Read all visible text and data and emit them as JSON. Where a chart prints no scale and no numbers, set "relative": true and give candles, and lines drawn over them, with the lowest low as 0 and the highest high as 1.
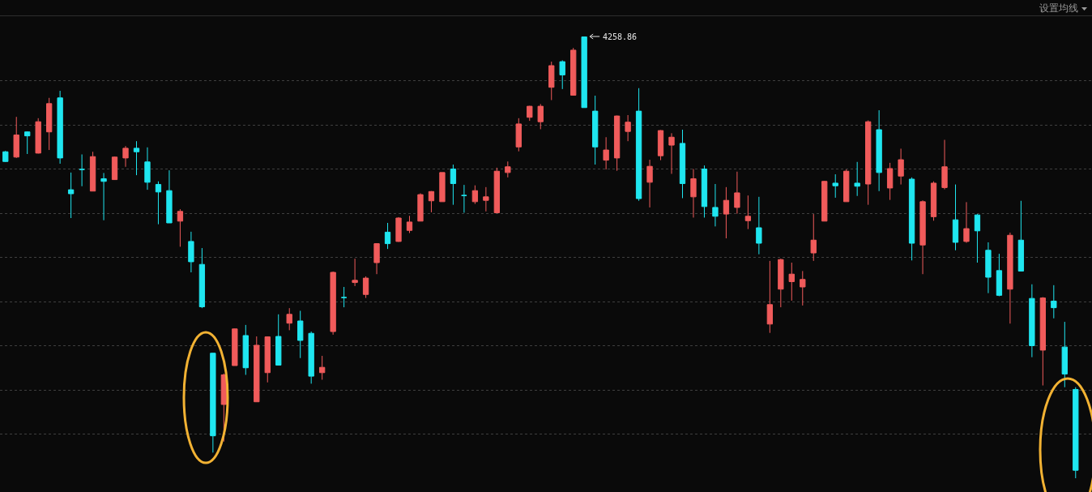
{
  "chart_data": {
    "type": "candlestick",
    "relative": true,
    "grid": "y",
    "annotations": [
      "设置均线",
      "4258.86"
    ],
    "categories": [
      null,
      null,
      null,
      null,
      null,
      null,
      null,
      null,
      null,
      null,
      null,
      null,
      null,
      null,
      null,
      null,
      null,
      null,
      null,
      null,
      null,
      null,
      null,
      null,
      null,
      null,
      null,
      null,
      null,
      null,
      null,
      null,
      null,
      null,
      null,
      null,
      null,
      null,
      null,
      null,
      null,
      null,
      null,
      null,
      null,
      null,
      null,
      null,
      null,
      null,
      null,
      null,
      null,
      null,
      null,
      null,
      null,
      null,
      null,
      null,
      null,
      null,
      null,
      null,
      null,
      null,
      null,
      null,
      null,
      null,
      null,
      null,
      null,
      null,
      null,
      null,
      null,
      null,
      null,
      null,
      null,
      null,
      null,
      null,
      null,
      null,
      null,
      null,
      null,
      null,
      null,
      null,
      null,
      null,
      null,
      null,
      null,
      null,
      null
    ],
    "ohlc": [
      [
        0.739,
        0.741,
        0.716,
        0.717
      ],
      [
        0.727,
        0.818,
        0.725,
        0.777
      ],
      [
        0.784,
        0.785,
        0.734,
        0.775
      ],
      [
        0.736,
        0.815,
        0.735,
        0.807
      ],
      [
        0.784,
        0.861,
        0.743,
        0.848
      ],
      [
        0.861,
        0.877,
        0.712,
        0.725
      ],
      [
        0.653,
        0.692,
        0.589,
        0.644
      ],
      [
        0.699,
        0.733,
        0.661,
        0.699
      ],
      [
        0.65,
        0.739,
        0.65,
        0.728
      ],
      [
        0.678,
        0.691,
        0.584,
        0.672
      ],
      [
        0.676,
        0.728,
        0.676,
        0.727
      ],
      [
        0.725,
        0.752,
        0.705,
        0.747
      ],
      [
        0.747,
        0.763,
        0.686,
        0.739
      ],
      [
        0.716,
        0.749,
        0.653,
        0.67
      ],
      [
        0.665,
        0.672,
        0.575,
        0.648
      ],
      [
        0.651,
        0.697,
        0.578,
        0.578
      ],
      [
        0.582,
        0.609,
        0.524,
        0.604
      ],
      [
        0.536,
        0.558,
        0.466,
        0.49
      ],
      [
        0.484,
        0.521,
        0.385,
        0.388
      ],
      [
        0.283,
        0.284,
        0.058,
        0.096
      ],
      [
        0.167,
        0.237,
        0.083,
        0.234
      ],
      [
        0.255,
        0.339,
        0.255,
        0.338
      ],
      [
        0.323,
        0.347,
        0.234,
        0.25
      ],
      [
        0.173,
        0.321,
        0.173,
        0.301
      ],
      [
        0.239,
        0.321,
        0.217,
        0.32
      ],
      [
        0.321,
        0.371,
        0.256,
        0.256
      ],
      [
        0.351,
        0.385,
        0.335,
        0.371
      ],
      [
        0.356,
        0.379,
        0.272,
        0.312
      ],
      [
        0.328,
        0.332,
        0.214,
        0.231
      ],
      [
        0.239,
        0.277,
        0.223,
        0.251
      ],
      [
        0.332,
        0.468,
        0.325,
        0.466
      ],
      [
        0.409,
        0.433,
        0.387,
        0.409
      ],
      [
        0.443,
        0.497,
        0.435,
        0.448
      ],
      [
        0.416,
        0.457,
        0.408,
        0.453
      ],
      [
        0.488,
        0.532,
        0.462,
        0.531
      ],
      [
        0.557,
        0.578,
        0.519,
        0.531
      ],
      [
        0.536,
        0.591,
        0.535,
        0.589
      ],
      [
        0.561,
        0.594,
        0.555,
        0.58
      ],
      [
        0.582,
        0.645,
        0.582,
        0.642
      ],
      [
        0.628,
        0.65,
        0.602,
        0.649
      ],
      [
        0.626,
        0.692,
        0.626,
        0.692
      ],
      [
        0.7,
        0.71,
        0.619,
        0.667
      ],
      [
        0.64,
        0.664,
        0.601,
        0.64
      ],
      [
        0.626,
        0.663,
        0.621,
        0.651
      ],
      [
        0.629,
        0.659,
        0.604,
        0.637
      ],
      [
        0.601,
        0.703,
        0.601,
        0.695
      ],
      [
        0.692,
        0.717,
        0.681,
        0.705
      ],
      [
        0.75,
        0.815,
        0.74,
        0.802
      ],
      [
        0.817,
        0.843,
        0.809,
        0.842
      ],
      [
        0.807,
        0.847,
        0.79,
        0.842
      ],
      [
        0.885,
        0.943,
        0.856,
        0.934
      ],
      [
        0.943,
        0.946,
        0.881,
        0.913
      ],
      [
        0.867,
        0.974,
        0.867,
        0.969
      ],
      [
        0.999,
        1,
        0.839,
        0.839
      ],
      [
        0.831,
        0.866,
        0.71,
        0.75
      ],
      [
        0.72,
        0.772,
        0.699,
        0.743
      ],
      [
        0.725,
        0.821,
        0.696,
        0.82
      ],
      [
        0.785,
        0.822,
        0.763,
        0.806
      ],
      [
        0.831,
        0.883,
        0.628,
        0.633
      ],
      [
        0.67,
        0.721,
        0.613,
        0.706
      ],
      [
        0.73,
        0.788,
        0.72,
        0.787
      ],
      [
        0.754,
        0.781,
        0.689,
        0.772
      ],
      [
        0.758,
        0.789,
        0.634,
        0.667
      ],
      [
        0.637,
        0.7,
        0.59,
        0.678
      ],
      [
        0.7,
        0.708,
        0.59,
        0.615
      ],
      [
        0.613,
        0.666,
        0.57,
        0.593
      ],
      [
        0.598,
        0.659,
        0.543,
        0.629
      ],
      [
        0.613,
        0.694,
        0.599,
        0.646
      ],
      [
        0.583,
        0.64,
        0.564,
        0.593
      ],
      [
        0.567,
        0.637,
        0.507,
        0.532
      ],
      [
        0.349,
        0.492,
        0.329,
        0.393
      ],
      [
        0.428,
        0.497,
        0.387,
        0.495
      ],
      [
        0.445,
        0.488,
        0.402,
        0.462
      ],
      [
        0.433,
        0.469,
        0.391,
        0.45
      ],
      [
        0.51,
        0.598,
        0.492,
        0.539
      ],
      [
        0.582,
        0.673,
        0.582,
        0.672
      ],
      [
        0.668,
        0.688,
        0.635,
        0.662
      ],
      [
        0.626,
        0.699,
        0.626,
        0.695
      ],
      [
        0.668,
        0.716,
        0.639,
        0.661
      ],
      [
        0.666,
        0.81,
        0.619,
        0.807
      ],
      [
        0.789,
        0.833,
        0.65,
        0.692
      ],
      [
        0.657,
        0.714,
        0.63,
        0.701
      ],
      [
        0.684,
        0.746,
        0.665,
        0.721
      ],
      [
        0.677,
        0.681,
        0.493,
        0.532
      ],
      [
        0.528,
        0.629,
        0.462,
        0.626
      ],
      [
        0.592,
        0.672,
        0.583,
        0.668
      ],
      [
        0.658,
        0.766,
        0.654,
        0.705
      ],
      [
        0.585,
        0.665,
        0.516,
        0.534
      ],
      [
        0.536,
        0.625,
        0.533,
        0.565
      ],
      [
        0.596,
        0.598,
        0.488,
        0.56
      ],
      [
        0.516,
        0.534,
        0.419,
        0.455
      ],
      [
        0.47,
        0.508,
        0.412,
        0.414
      ],
      [
        0.428,
        0.556,
        0.35,
        0.55
      ],
      [
        0.539,
        0.628,
        0.469,
        0.469
      ],
      [
        0.407,
        0.439,
        0.274,
        0.3
      ],
      [
        0.29,
        0.41,
        0.21,
        0.408
      ],
      [
        0.401,
        0.437,
        0.362,
        0.386
      ],
      [
        0.297,
        0.354,
        0.206,
        0.236
      ],
      [
        0.201,
        0.206,
        0,
        0.018
      ]
    ],
    "colors": [
      "#1fe6f0",
      "#f05b5b",
      "#1fe6f0",
      "#f05b5b",
      "#f05b5b",
      "#1fe6f0",
      "#1fe6f0",
      "#1fe6f0",
      "#f05b5b",
      "#1fe6f0",
      "#f05b5b",
      "#f05b5b",
      "#1fe6f0",
      "#1fe6f0",
      "#1fe6f0",
      "#1fe6f0",
      "#f05b5b",
      "#1fe6f0",
      "#1fe6f0",
      "#1fe6f0",
      "#f05b5b",
      "#f05b5b",
      "#1fe6f0",
      "#f05b5b",
      "#f05b5b",
      "#1fe6f0",
      "#f05b5b",
      "#1fe6f0",
      "#1fe6f0",
      "#f05b5b",
      "#f05b5b",
      "#1fe6f0",
      "#f05b5b",
      "#f05b5b",
      "#f05b5b",
      "#1fe6f0",
      "#f05b5b",
      "#f05b5b",
      "#f05b5b",
      "#f05b5b",
      "#f05b5b",
      "#1fe6f0",
      "#1fe6f0",
      "#f05b5b",
      "#f05b5b",
      "#f05b5b",
      "#f05b5b",
      "#f05b5b",
      "#f05b5b",
      "#f05b5b",
      "#f05b5b",
      "#1fe6f0",
      "#f05b5b",
      "#1fe6f0",
      "#1fe6f0",
      "#f05b5b",
      "#f05b5b",
      "#f05b5b",
      "#1fe6f0",
      "#f05b5b",
      "#f05b5b",
      "#f05b5b",
      "#1fe6f0",
      "#f05b5b",
      "#1fe6f0",
      "#1fe6f0",
      "#f05b5b",
      "#f05b5b",
      "#f05b5b",
      "#1fe6f0",
      "#f05b5b",
      "#f05b5b",
      "#f05b5b",
      "#f05b5b",
      "#f05b5b",
      "#f05b5b",
      "#1fe6f0",
      "#f05b5b",
      "#1fe6f0",
      "#f05b5b",
      "#1fe6f0",
      "#f05b5b",
      "#f05b5b",
      "#1fe6f0",
      "#f05b5b",
      "#f05b5b",
      "#f05b5b",
      "#1fe6f0",
      "#f05b5b",
      "#1fe6f0",
      "#1fe6f0",
      "#1fe6f0",
      "#f05b5b",
      "#1fe6f0",
      "#1fe6f0",
      "#f05b5b",
      "#1fe6f0",
      "#1fe6f0",
      "#1fe6f0"
    ]
  }
}
